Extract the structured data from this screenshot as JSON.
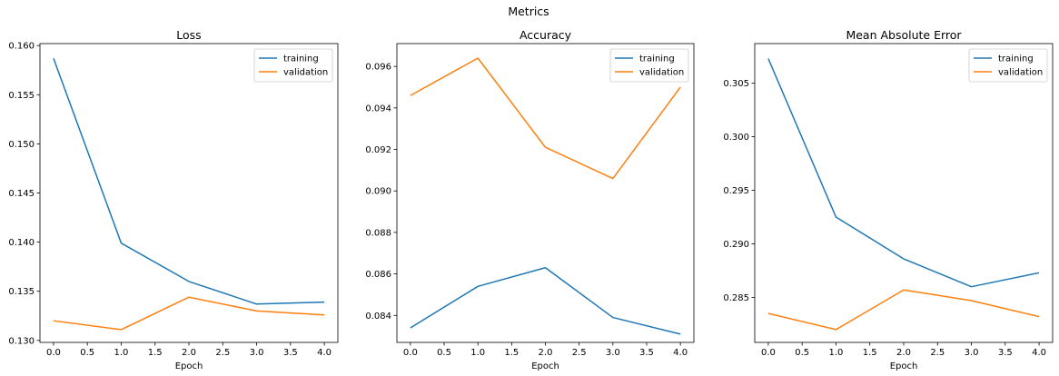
{
  "suptitle": "Metrics",
  "colors": {
    "training": "#1f77b4",
    "validation": "#ff7f0e"
  },
  "chart_data": [
    {
      "type": "line",
      "title": "Loss",
      "xlabel": "Epoch",
      "ylabel": "",
      "x": [
        0,
        1,
        2,
        3,
        4
      ],
      "xlim": [
        -0.2,
        4.2
      ],
      "ylim": [
        0.1298,
        0.1602
      ],
      "xticks": [
        "0.0",
        "0.5",
        "1.0",
        "1.5",
        "2.0",
        "2.5",
        "3.0",
        "3.5",
        "4.0"
      ],
      "yticks": [
        "0.130",
        "0.135",
        "0.140",
        "0.145",
        "0.150",
        "0.155",
        "0.160"
      ],
      "legend": "top-right",
      "series": [
        {
          "name": "training",
          "values": [
            0.1587,
            0.1399,
            0.136,
            0.1337,
            0.1339
          ]
        },
        {
          "name": "validation",
          "values": [
            0.132,
            0.1311,
            0.1344,
            0.133,
            0.1326
          ]
        }
      ]
    },
    {
      "type": "line",
      "title": "Accuracy",
      "xlabel": "Epoch",
      "ylabel": "",
      "x": [
        0,
        1,
        2,
        3,
        4
      ],
      "xlim": [
        -0.2,
        4.2
      ],
      "ylim": [
        0.0827,
        0.0971
      ],
      "xticks": [
        "0.0",
        "0.5",
        "1.0",
        "1.5",
        "2.0",
        "2.5",
        "3.0",
        "3.5",
        "4.0"
      ],
      "yticks": [
        "0.084",
        "0.086",
        "0.088",
        "0.090",
        "0.092",
        "0.094",
        "0.096"
      ],
      "legend": "top-right",
      "series": [
        {
          "name": "training",
          "values": [
            0.0834,
            0.0854,
            0.0863,
            0.0839,
            0.0831
          ]
        },
        {
          "name": "validation",
          "values": [
            0.0946,
            0.0964,
            0.0921,
            0.0906,
            0.095
          ]
        }
      ]
    },
    {
      "type": "line",
      "title": "Mean Absolute Error",
      "xlabel": "Epoch",
      "ylabel": "",
      "x": [
        0,
        1,
        2,
        3,
        4
      ],
      "xlim": [
        -0.2,
        4.2
      ],
      "ylim": [
        0.2808,
        0.3087
      ],
      "xticks": [
        "0.0",
        "0.5",
        "1.0",
        "1.5",
        "2.0",
        "2.5",
        "3.0",
        "3.5",
        "4.0"
      ],
      "yticks": [
        "0.285",
        "0.290",
        "0.295",
        "0.300",
        "0.305"
      ],
      "legend": "top-right",
      "series": [
        {
          "name": "training",
          "values": [
            0.3073,
            0.2925,
            0.2886,
            0.286,
            0.2873
          ]
        },
        {
          "name": "validation",
          "values": [
            0.2835,
            0.282,
            0.2857,
            0.2847,
            0.2832
          ]
        }
      ]
    }
  ]
}
